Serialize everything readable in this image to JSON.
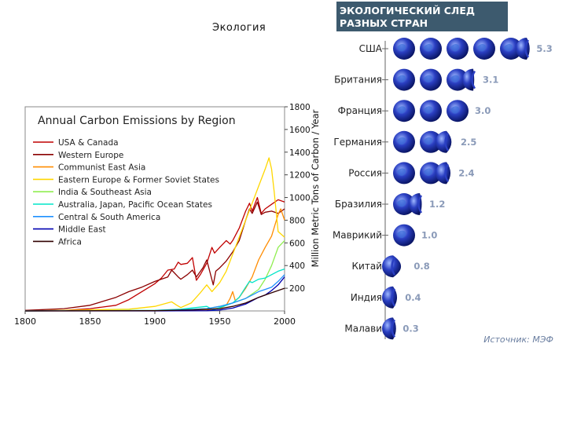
{
  "page": {
    "title": "Экология"
  },
  "chart_data": [
    {
      "type": "line",
      "title": "Annual Carbon Emissions by Region",
      "xlabel": "",
      "ylabel": "Million Metric Tons of Carbon / Year",
      "xlim": [
        1800,
        2000
      ],
      "ylim": [
        0,
        1800
      ],
      "xticks": [
        "1800",
        "1850",
        "1900",
        "1950",
        "2000"
      ],
      "yticks": [
        "200",
        "400",
        "600",
        "800",
        "1000",
        "1200",
        "1400",
        "1600",
        "1800"
      ],
      "grid": false,
      "legend_position": "top-left",
      "series": [
        {
          "name": "USA & Canada",
          "color": "#c00000",
          "x": [
            1800,
            1830,
            1850,
            1870,
            1880,
            1890,
            1900,
            1905,
            1910,
            1915,
            1918,
            1920,
            1925,
            1929,
            1932,
            1935,
            1940,
            1944,
            1946,
            1950,
            1955,
            1958,
            1960,
            1965,
            1970,
            1973,
            1975,
            1979,
            1982,
            1985,
            1990,
            1995,
            2000
          ],
          "y": [
            1,
            5,
            20,
            50,
            100,
            170,
            240,
            290,
            360,
            370,
            430,
            410,
            420,
            470,
            270,
            320,
            420,
            560,
            510,
            560,
            620,
            590,
            620,
            730,
            880,
            950,
            880,
            1000,
            860,
            900,
            940,
            980,
            960
          ]
        },
        {
          "name": "Western Europe",
          "color": "#8b0000",
          "x": [
            1800,
            1830,
            1850,
            1870,
            1880,
            1890,
            1900,
            1910,
            1913,
            1918,
            1920,
            1925,
            1929,
            1932,
            1937,
            1940,
            1945,
            1947,
            1950,
            1955,
            1960,
            1965,
            1970,
            1973,
            1975,
            1979,
            1982,
            1985,
            1990,
            1995,
            2000
          ],
          "y": [
            5,
            20,
            50,
            120,
            170,
            210,
            260,
            300,
            360,
            300,
            280,
            320,
            360,
            300,
            380,
            450,
            230,
            350,
            380,
            440,
            520,
            620,
            800,
            900,
            860,
            960,
            850,
            870,
            880,
            860,
            900
          ]
        },
        {
          "name": "Communist East Asia",
          "color": "#ff8c00",
          "x": [
            1800,
            1900,
            1940,
            1950,
            1955,
            1958,
            1960,
            1962,
            1965,
            1970,
            1975,
            1980,
            1985,
            1990,
            1995,
            1997,
            2000
          ],
          "y": [
            0,
            2,
            10,
            25,
            50,
            110,
            170,
            90,
            120,
            200,
            300,
            450,
            560,
            660,
            850,
            900,
            800
          ]
        },
        {
          "name": "Eastern Europe & Former Soviet States",
          "color": "#ffd700",
          "x": [
            1800,
            1880,
            1900,
            1913,
            1917,
            1920,
            1928,
            1935,
            1940,
            1944,
            1950,
            1955,
            1960,
            1965,
            1970,
            1975,
            1980,
            1985,
            1988,
            1990,
            1992,
            1995,
            2000
          ],
          "y": [
            0,
            15,
            40,
            80,
            50,
            30,
            70,
            160,
            230,
            170,
            250,
            350,
            500,
            650,
            800,
            950,
            1100,
            1250,
            1350,
            1250,
            1050,
            700,
            650
          ]
        },
        {
          "name": "India & Southeast Asia",
          "color": "#90ee50",
          "x": [
            1800,
            1900,
            1940,
            1950,
            1960,
            1970,
            1980,
            1985,
            1990,
            1995,
            2000
          ],
          "y": [
            0,
            5,
            20,
            40,
            70,
            110,
            190,
            280,
            400,
            560,
            620
          ]
        },
        {
          "name": "Australia, Japan, Pacific Ocean States",
          "color": "#00e5c8",
          "x": [
            1800,
            1900,
            1920,
            1940,
            1945,
            1950,
            1960,
            1965,
            1970,
            1973,
            1975,
            1980,
            1985,
            1990,
            1995,
            2000
          ],
          "y": [
            0,
            5,
            15,
            40,
            10,
            30,
            70,
            120,
            210,
            260,
            250,
            280,
            290,
            320,
            350,
            370
          ]
        },
        {
          "name": "Central & South America",
          "color": "#1e90ff",
          "x": [
            1800,
            1900,
            1920,
            1940,
            1950,
            1960,
            1970,
            1980,
            1985,
            1990,
            1995,
            2000
          ],
          "y": [
            0,
            3,
            10,
            20,
            40,
            70,
            110,
            170,
            190,
            210,
            260,
            320
          ]
        },
        {
          "name": "Middle East",
          "color": "#0000b0",
          "x": [
            1800,
            1900,
            1940,
            1950,
            1960,
            1970,
            1980,
            1985,
            1990,
            1995,
            2000
          ],
          "y": [
            0,
            0,
            2,
            8,
            25,
            60,
            120,
            140,
            180,
            230,
            300
          ]
        },
        {
          "name": "Africa",
          "color": "#300000",
          "x": [
            1800,
            1900,
            1930,
            1950,
            1960,
            1970,
            1980,
            1985,
            1990,
            1995,
            2000
          ],
          "y": [
            0,
            2,
            10,
            20,
            40,
            70,
            120,
            140,
            160,
            180,
            200
          ]
        }
      ]
    },
    {
      "type": "bar",
      "title": "ЭКОЛОГИЧЕСКИЙ СЛЕД",
      "subtitle": "РАЗНЫХ СТРАН",
      "categories": [
        "США",
        "Британия",
        "Франция",
        "Германия",
        "Россия",
        "Бразилия",
        "Маврикий",
        "Китай",
        "Индия",
        "Малави"
      ],
      "values": [
        5.3,
        3.1,
        3.0,
        2.5,
        2.4,
        1.2,
        1.0,
        0.8,
        0.4,
        0.3
      ],
      "value_labels": [
        "5.3",
        "3.1",
        "3.0",
        "2.5",
        "2.4",
        "1.2",
        "1.0",
        "0.8",
        "0.4",
        "0.3"
      ],
      "source": "Источник: МЭФ",
      "colors": {
        "header_bg": "#3d5a6e",
        "globe": "#2233aa",
        "globe_light": "#88a8ff"
      }
    }
  ]
}
